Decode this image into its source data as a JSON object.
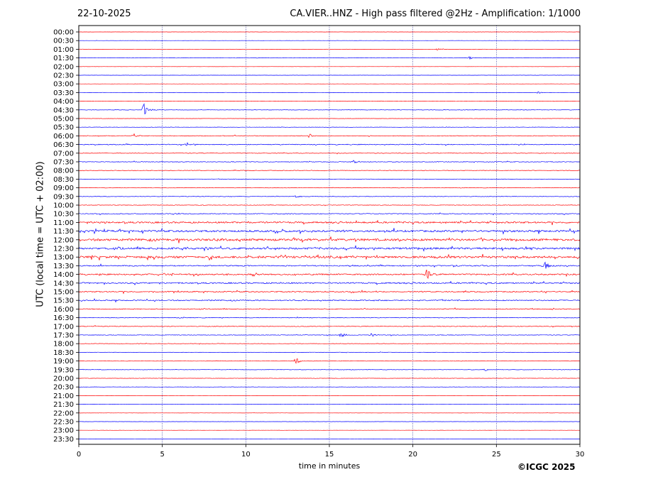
{
  "header": {
    "date": "22-10-2025",
    "title": "CA.VIER..HNZ - High pass filtered @2Hz - Amplification: 1/1000"
  },
  "footer": {
    "copyright": "©ICGC 2025"
  },
  "chart_data": {
    "type": "line",
    "xlabel": "time in minutes",
    "ylabel": "UTC (local time = UTC + 02:00)",
    "xlim": [
      0,
      30
    ],
    "x_ticks": [
      "0",
      "5",
      "10",
      "15",
      "20",
      "25",
      "30"
    ],
    "x_gridlines": [
      5,
      10,
      15,
      20,
      25
    ],
    "grid": "vertical dotted",
    "series_colors": [
      "#ff0000",
      "#0000ff"
    ],
    "rows": [
      "00:00",
      "00:30",
      "01:00",
      "01:30",
      "02:00",
      "02:30",
      "03:00",
      "03:30",
      "04:00",
      "04:30",
      "05:00",
      "05:30",
      "06:00",
      "06:30",
      "07:00",
      "07:30",
      "08:00",
      "08:30",
      "09:00",
      "09:30",
      "10:00",
      "10:30",
      "11:00",
      "11:30",
      "12:00",
      "12:30",
      "13:00",
      "13:30",
      "14:00",
      "14:30",
      "15:00",
      "15:30",
      "16:00",
      "16:30",
      "17:00",
      "17:30",
      "18:00",
      "18:30",
      "19:00",
      "19:30",
      "20:00",
      "20:30",
      "21:00",
      "21:30",
      "22:00",
      "22:30",
      "23:00",
      "23:30"
    ],
    "row_noise_level": [
      0.3,
      0.3,
      0.5,
      0.5,
      0.3,
      0.3,
      0.3,
      0.5,
      0.5,
      0.8,
      0.5,
      0.6,
      1.2,
      1.5,
      1.0,
      1.2,
      1.0,
      0.8,
      0.8,
      1.0,
      1.0,
      1.5,
      3.0,
      3.5,
      4.0,
      3.5,
      4.0,
      2.0,
      2.5,
      2.5,
      2.0,
      2.0,
      1.5,
      1.2,
      1.2,
      1.0,
      0.8,
      0.8,
      0.8,
      0.8,
      0.6,
      0.6,
      0.4,
      0.4,
      0.4,
      0.4,
      0.3,
      0.3
    ],
    "events": [
      {
        "row": "01:00",
        "minute": 21.5,
        "amplitude": 2
      },
      {
        "row": "01:30",
        "minute": 23.4,
        "amplitude": 2
      },
      {
        "row": "03:30",
        "minute": 27.5,
        "amplitude": 2
      },
      {
        "row": "04:30",
        "minute": 3.9,
        "amplitude": 9
      },
      {
        "row": "06:00",
        "minute": 3.3,
        "amplitude": 3
      },
      {
        "row": "06:00",
        "minute": 13.8,
        "amplitude": 4
      },
      {
        "row": "06:30",
        "minute": 6.5,
        "amplitude": 3
      },
      {
        "row": "07:30",
        "minute": 16.4,
        "amplitude": 4
      },
      {
        "row": "09:30",
        "minute": 13.0,
        "amplitude": 2
      },
      {
        "row": "12:30",
        "minute": 7.5,
        "amplitude": 4
      },
      {
        "row": "13:30",
        "minute": 27.9,
        "amplitude": 6
      },
      {
        "row": "14:00",
        "minute": 20.8,
        "amplitude": 10
      },
      {
        "row": "14:00",
        "minute": 10.5,
        "amplitude": 3
      },
      {
        "row": "17:30",
        "minute": 15.7,
        "amplitude": 5
      },
      {
        "row": "17:30",
        "minute": 17.5,
        "amplitude": 3
      },
      {
        "row": "19:00",
        "minute": 13.0,
        "amplitude": 5
      },
      {
        "row": "19:30",
        "minute": 24.3,
        "amplitude": 2
      }
    ]
  }
}
